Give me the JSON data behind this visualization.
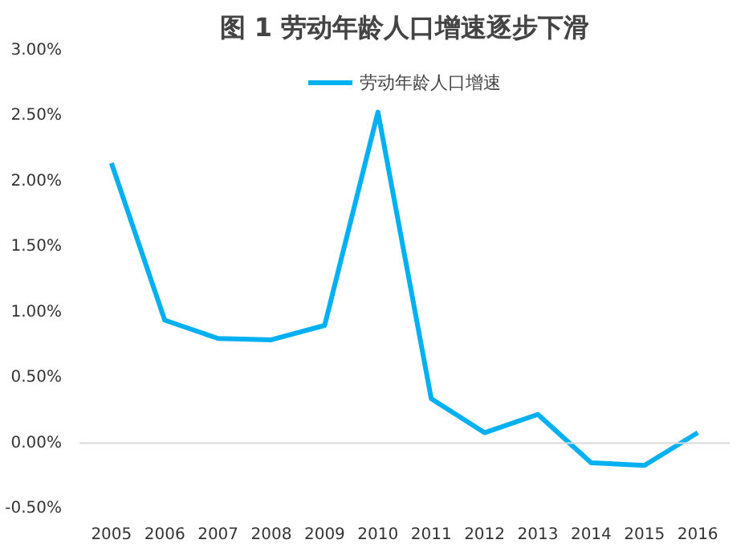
{
  "chart_data": {
    "type": "line",
    "title": "图 1 劳动年龄人口增速逐步下滑",
    "categories": [
      "2005",
      "2006",
      "2007",
      "2008",
      "2009",
      "2010",
      "2011",
      "2012",
      "2013",
      "2014",
      "2015",
      "2016"
    ],
    "series": [
      {
        "name": "劳动年龄人口增速",
        "color": "#00b0f0",
        "values": [
          2.14,
          0.94,
          0.8,
          0.79,
          0.9,
          2.53,
          0.34,
          0.08,
          0.22,
          -0.15,
          -0.17,
          0.08
        ]
      }
    ],
    "ylim": [
      -0.5,
      3.0
    ],
    "yticks": [
      {
        "value": -0.5,
        "label": "-0.50%"
      },
      {
        "value": 0,
        "label": "0.00%"
      },
      {
        "value": 0.5,
        "label": "0.50%"
      },
      {
        "value": 1.0,
        "label": "1.00%"
      },
      {
        "value": 1.5,
        "label": "1.50%"
      },
      {
        "value": 2.0,
        "label": "2.00%"
      },
      {
        "value": 2.5,
        "label": "2.50%"
      },
      {
        "value": 3.0,
        "label": "3.00%"
      }
    ],
    "ref_lines": [
      {
        "axis": "y",
        "value": 0,
        "color": "#d9d9d9"
      }
    ],
    "grid": false,
    "legend": "top",
    "marker": "none",
    "line_style": "solid"
  }
}
